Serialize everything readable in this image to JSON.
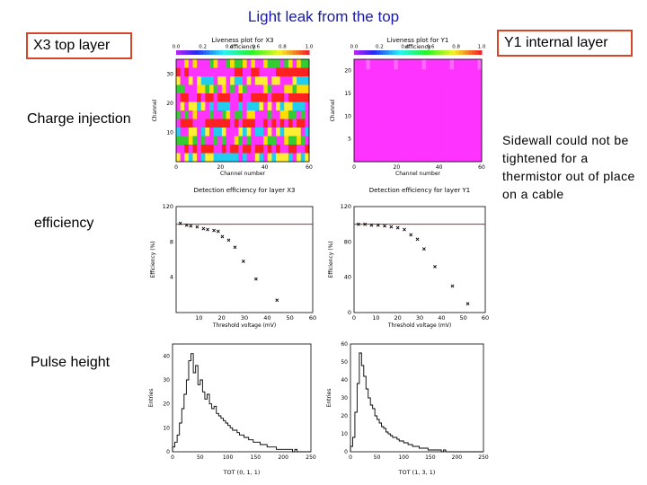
{
  "slide": {
    "title": "Light leak from the top",
    "x3_label": "X3 top layer",
    "y1_label": "Y1 internal layer",
    "row_charge": "Charge injection",
    "row_efficiency": "efficiency",
    "row_pulse": "Pulse height",
    "note": "Sidewall could not be tightened for a thermistor out of place on a cable"
  },
  "colors": {
    "title": "#1a1aa6",
    "box_border": "#d9452b",
    "efficiency_line": "#b22222",
    "heatmap_magenta": "#ff33ff"
  },
  "chart_data": [
    {
      "id": "charge-x3",
      "type": "heatmap",
      "title": "Liveness plot for X3",
      "subtitle": "efficiency",
      "colorbar_ticks": [
        "0.0",
        "0.2",
        "0.4",
        "0.6",
        "0.8",
        "1.0"
      ],
      "xlabel": "Channel number",
      "ylabel": "Channel",
      "x_ticks": [
        "0",
        "20",
        "40",
        "60"
      ],
      "y_ticks": [
        "10",
        "20",
        "30"
      ],
      "rows": 12,
      "cols": 32,
      "pattern": "striped"
    },
    {
      "id": "charge-y1",
      "type": "heatmap",
      "title": "Liveness plot for Y1",
      "subtitle": "efficiency",
      "colorbar_ticks": [
        "0.0",
        "0.2",
        "0.4",
        "0.6",
        "0.8",
        "1.0"
      ],
      "xlabel": "Channel number",
      "ylabel": "Channel",
      "x_ticks": [
        "0",
        "20",
        "40",
        "60"
      ],
      "y_ticks": [
        "5",
        "10",
        "15",
        "20"
      ],
      "rows": 10,
      "cols": 32,
      "pattern": "uniform"
    },
    {
      "id": "eff-x3",
      "type": "scatter",
      "title": "Detection efficiency for layer X3",
      "xlabel": "Threshold voltage (mV)",
      "ylabel": "Efficiency (%)",
      "xlim": [
        0,
        65
      ],
      "ylim": [
        0,
        120
      ],
      "x_ticks": [
        "10",
        "20",
        "30",
        "40",
        "50",
        "60"
      ],
      "y_ticks": [
        "4",
        "8",
        "120"
      ],
      "ref_line": 100,
      "points": [
        {
          "x": 2,
          "y": 101
        },
        {
          "x": 5,
          "y": 99
        },
        {
          "x": 7,
          "y": 98
        },
        {
          "x": 10,
          "y": 97
        },
        {
          "x": 13,
          "y": 95
        },
        {
          "x": 15,
          "y": 94
        },
        {
          "x": 18,
          "y": 93
        },
        {
          "x": 20,
          "y": 92
        },
        {
          "x": 22,
          "y": 86
        },
        {
          "x": 25,
          "y": 82
        },
        {
          "x": 28,
          "y": 74
        },
        {
          "x": 32,
          "y": 58
        },
        {
          "x": 38,
          "y": 38
        },
        {
          "x": 48,
          "y": 14
        }
      ]
    },
    {
      "id": "eff-y1",
      "type": "scatter",
      "title": "Detection efficiency for layer Y1",
      "xlabel": "Threshold voltage (mV)",
      "ylabel": "Efficiency (%)",
      "xlim": [
        0,
        60
      ],
      "ylim": [
        0,
        120
      ],
      "x_ticks": [
        "0",
        "10",
        "20",
        "30",
        "40",
        "50",
        "60"
      ],
      "y_ticks": [
        "0",
        "40",
        "80",
        "120"
      ],
      "ref_line": 100,
      "points": [
        {
          "x": 2,
          "y": 100
        },
        {
          "x": 5,
          "y": 100
        },
        {
          "x": 8,
          "y": 99
        },
        {
          "x": 11,
          "y": 99
        },
        {
          "x": 14,
          "y": 98
        },
        {
          "x": 17,
          "y": 97
        },
        {
          "x": 20,
          "y": 96
        },
        {
          "x": 23,
          "y": 94
        },
        {
          "x": 26,
          "y": 88
        },
        {
          "x": 29,
          "y": 83
        },
        {
          "x": 32,
          "y": 72
        },
        {
          "x": 37,
          "y": 52
        },
        {
          "x": 45,
          "y": 30
        },
        {
          "x": 52,
          "y": 10
        }
      ]
    },
    {
      "id": "pulse-x3",
      "type": "area",
      "title": "",
      "xlabel": "TOT (0, 1, 1)",
      "ylabel": "Entries",
      "xlim": [
        0,
        250
      ],
      "ylim": [
        0,
        45
      ],
      "x_ticks": [
        "0",
        "50",
        "100",
        "150",
        "200",
        "250"
      ],
      "y_ticks": [
        "0",
        "10",
        "20",
        "30",
        "40"
      ],
      "values": [
        2,
        4,
        7,
        12,
        18,
        24,
        30,
        38,
        41,
        33,
        36,
        28,
        30,
        25,
        22,
        24,
        20,
        18,
        19,
        16,
        15,
        14,
        13,
        12,
        11,
        10,
        9,
        9,
        8,
        7,
        7,
        6,
        6,
        5,
        5,
        4,
        4,
        4,
        3,
        3,
        3,
        2,
        2,
        2,
        2,
        1,
        1,
        1,
        1,
        1,
        1,
        1,
        0,
        1,
        0,
        0,
        0,
        0,
        0,
        0
      ]
    },
    {
      "id": "pulse-y1",
      "type": "area",
      "title": "",
      "xlabel": "TOT (1, 3, 1)",
      "ylabel": "Entries",
      "xlim": [
        0,
        250
      ],
      "ylim": [
        0,
        60
      ],
      "x_ticks": [
        "0",
        "50",
        "100",
        "150",
        "200",
        "250"
      ],
      "y_ticks": [
        "0",
        "10",
        "20",
        "30",
        "40",
        "50",
        "60"
      ],
      "values": [
        3,
        8,
        22,
        38,
        55,
        48,
        42,
        35,
        30,
        26,
        24,
        20,
        18,
        16,
        14,
        13,
        11,
        10,
        9,
        8,
        8,
        7,
        6,
        6,
        5,
        5,
        4,
        4,
        3,
        3,
        3,
        2,
        2,
        2,
        2,
        1,
        1,
        1,
        1,
        1,
        1,
        0,
        1,
        0,
        0,
        0,
        0,
        0,
        0,
        0,
        0,
        0,
        0,
        0,
        0,
        0,
        0,
        0,
        0,
        0
      ]
    }
  ]
}
